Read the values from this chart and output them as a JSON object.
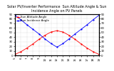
{
  "title": "Solar PV/Inverter Performance  Sun Altitude Angle & Sun Incidence Angle on PV Panels",
  "legend": [
    "Sun Altitude Angle",
    "Sun Incidence Angle"
  ],
  "x_hours": [
    5,
    6,
    7,
    8,
    9,
    10,
    11,
    12,
    13,
    14,
    15,
    16,
    17,
    18,
    19
  ],
  "sun_altitude": [
    2,
    8,
    16,
    25,
    35,
    44,
    51,
    54,
    51,
    44,
    35,
    25,
    16,
    8,
    2
  ],
  "sun_incidence": [
    88,
    78,
    67,
    57,
    47,
    36,
    26,
    18,
    26,
    36,
    47,
    57,
    67,
    78,
    88
  ],
  "altitude_color": "#ff0000",
  "incidence_color": "#0000ff",
  "bg_color": "#ffffff",
  "grid_color": "#aaaaaa",
  "ylim_left": [
    0,
    90
  ],
  "ylim_right": [
    0,
    90
  ],
  "xlim": [
    5,
    19
  ],
  "xlabel_ticks": [
    5,
    6,
    7,
    8,
    9,
    10,
    11,
    12,
    13,
    14,
    15,
    16,
    17,
    18,
    19
  ],
  "yticks_left": [
    0,
    10,
    20,
    30,
    40,
    50,
    60,
    70,
    80,
    90
  ],
  "yticks_right": [
    0,
    10,
    20,
    30,
    40,
    50,
    60,
    70,
    80,
    90
  ],
  "title_fontsize": 3.5,
  "legend_fontsize": 2.8,
  "tick_fontsize": 2.8,
  "linewidth": 0.6,
  "marker": ".",
  "markersize": 1.2
}
